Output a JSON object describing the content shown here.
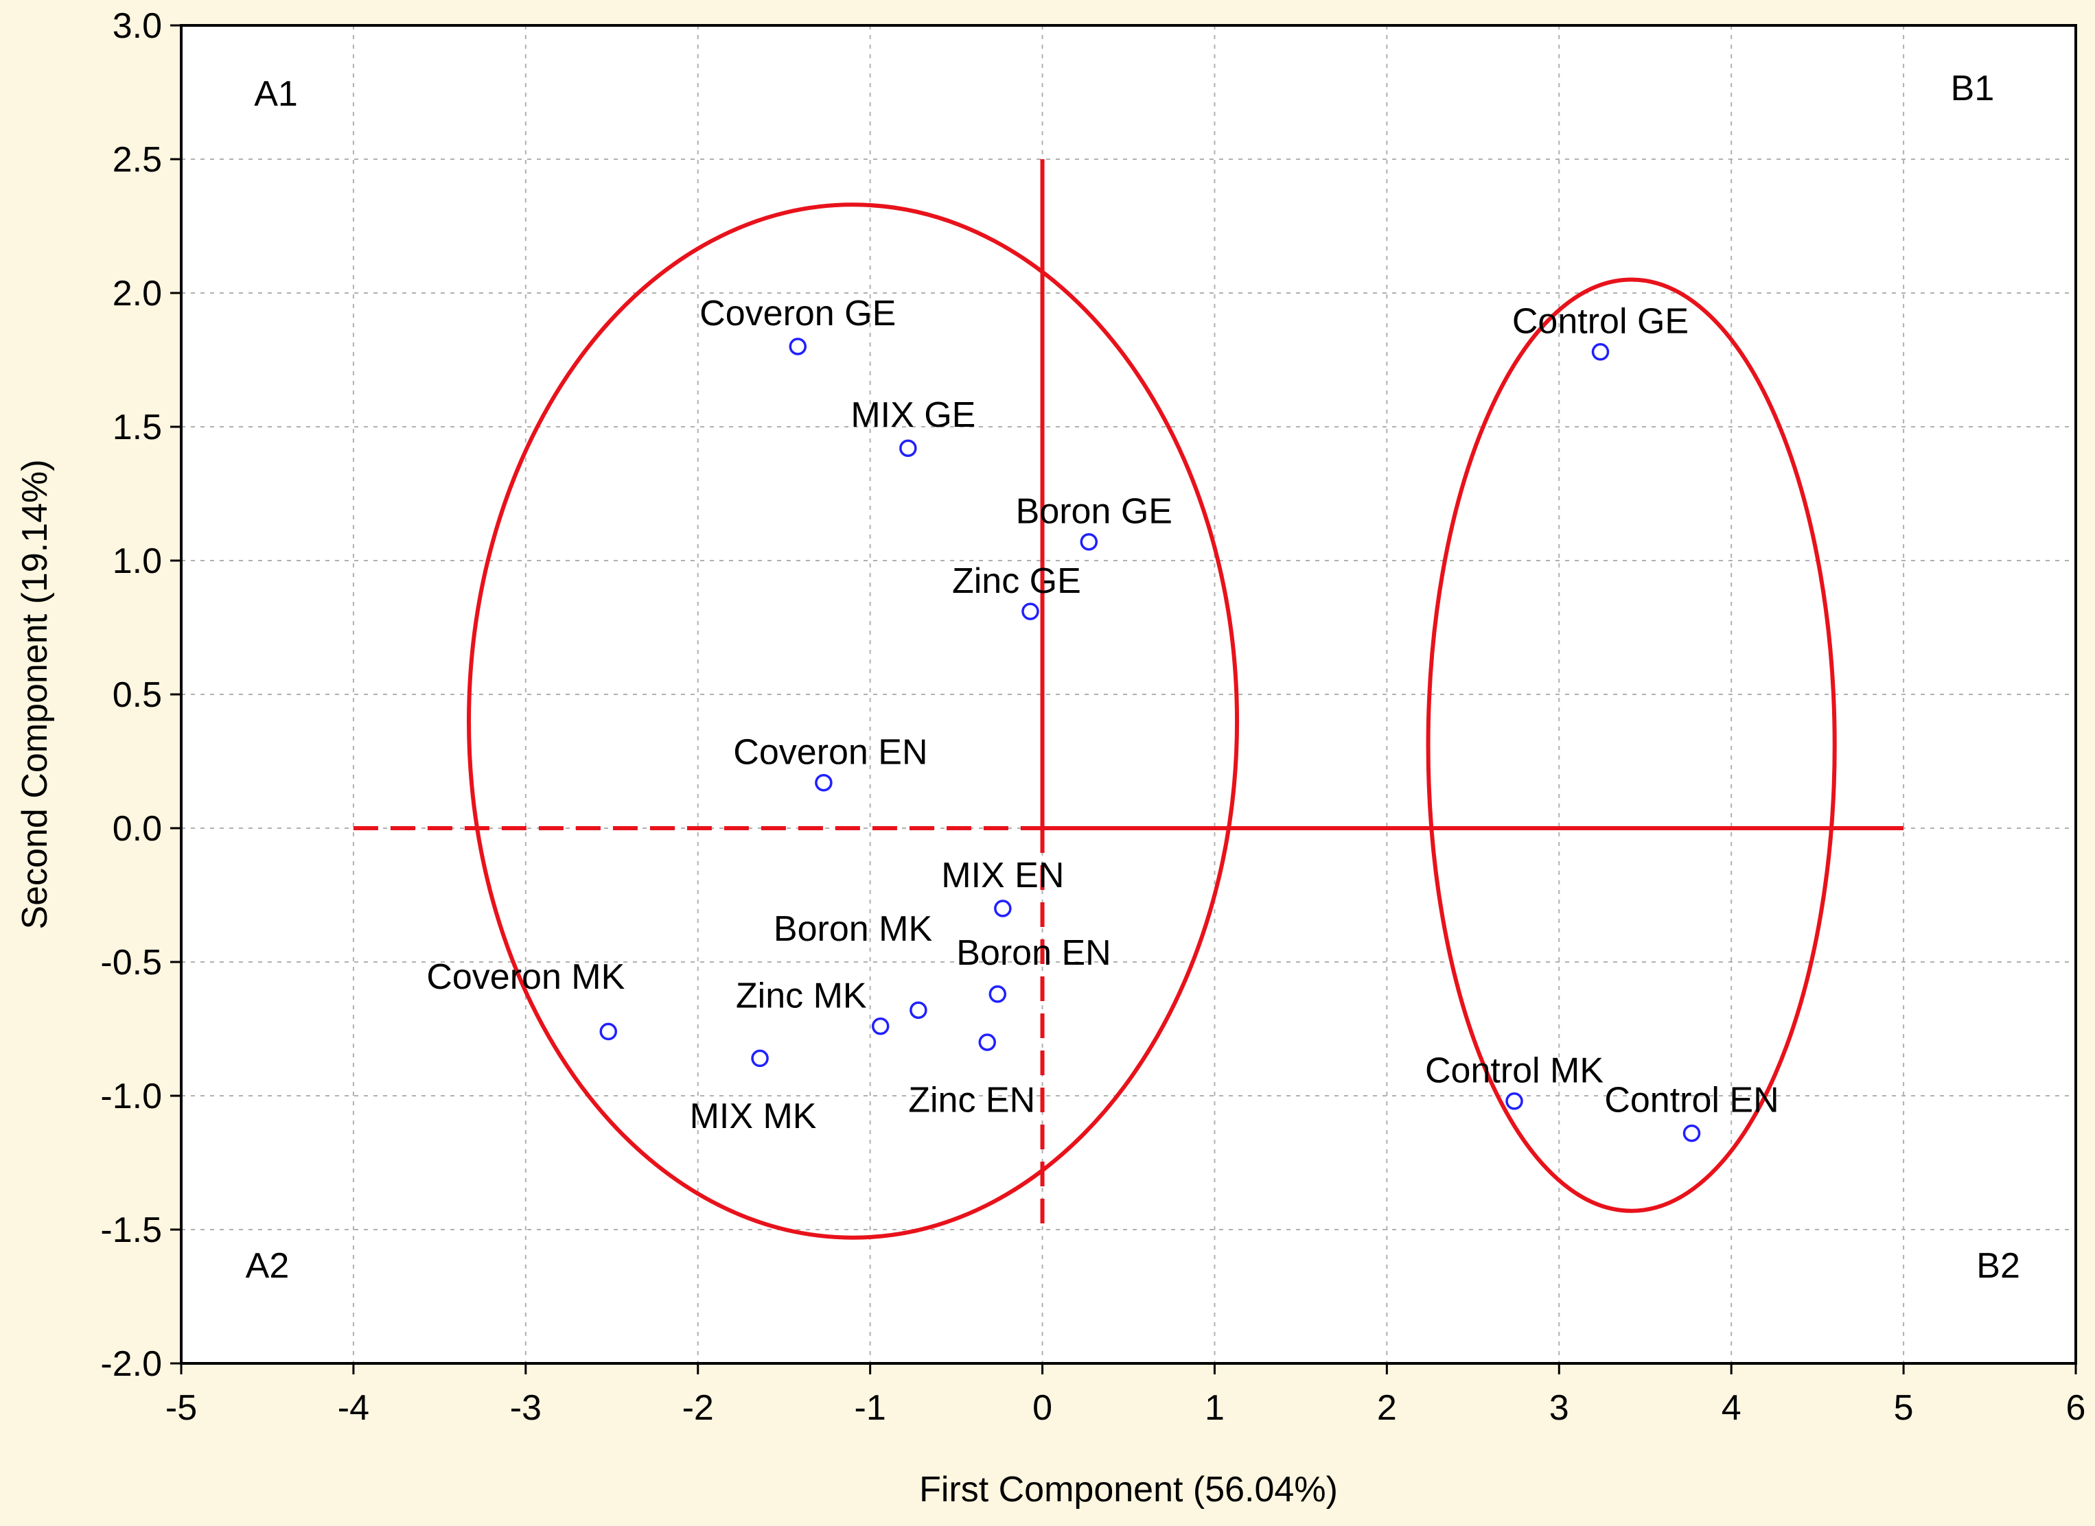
{
  "chart_data": {
    "type": "scatter",
    "title": "",
    "xlabel": "First Component (56.04%)",
    "ylabel": "Second Component (19.14%)",
    "xlim": [
      -5,
      6
    ],
    "ylim": [
      -2.0,
      3.0
    ],
    "x_ticks": [
      -5,
      -4,
      -3,
      -2,
      -1,
      0,
      1,
      2,
      3,
      4,
      5,
      6
    ],
    "x_tick_labels": [
      "-5",
      "-4",
      "-3",
      "-2",
      "-1",
      "0",
      "1",
      "2",
      "3",
      "4",
      "5",
      "6"
    ],
    "y_ticks": [
      -2.0,
      -1.5,
      -1.0,
      -0.5,
      0.0,
      0.5,
      1.0,
      1.5,
      2.0,
      2.5,
      3.0
    ],
    "y_tick_labels": [
      "-2.0",
      "-1.5",
      "-1.0",
      "-0.5",
      "0.0",
      "0.5",
      "1.0",
      "1.5",
      "2.0",
      "2.5",
      "3.0"
    ],
    "grid": true,
    "points": [
      {
        "label": "Coveron GE",
        "x": -1.42,
        "y": 1.8,
        "lx": -1.42,
        "ly": 1.88,
        "anchor": "middle"
      },
      {
        "label": "MIX GE",
        "x": -0.78,
        "y": 1.42,
        "lx": -0.75,
        "ly": 1.5,
        "anchor": "middle"
      },
      {
        "label": "Boron GE",
        "x": 0.27,
        "y": 1.07,
        "lx": 0.3,
        "ly": 1.14,
        "anchor": "middle"
      },
      {
        "label": "Zinc GE",
        "x": -0.07,
        "y": 0.81,
        "lx": -0.15,
        "ly": 0.88,
        "anchor": "middle"
      },
      {
        "label": "Coveron EN",
        "x": -1.27,
        "y": 0.17,
        "lx": -1.23,
        "ly": 0.24,
        "anchor": "middle"
      },
      {
        "label": "MIX EN",
        "x": -0.23,
        "y": -0.3,
        "lx": -0.23,
        "ly": -0.22,
        "anchor": "middle"
      },
      {
        "label": "Boron MK",
        "x": -0.72,
        "y": -0.68,
        "lx": -1.1,
        "ly": -0.42,
        "anchor": "middle"
      },
      {
        "label": "Boron EN",
        "x": -0.26,
        "y": -0.62,
        "lx": -0.05,
        "ly": -0.51,
        "anchor": "middle"
      },
      {
        "label": "Coveron MK",
        "x": -2.52,
        "y": -0.76,
        "lx": -3.0,
        "ly": -0.6,
        "anchor": "middle"
      },
      {
        "label": "Zinc MK",
        "x": -0.94,
        "y": -0.74,
        "lx": -1.4,
        "ly": -0.67,
        "anchor": "middle"
      },
      {
        "label": "Zinc EN",
        "x": -0.32,
        "y": -0.8,
        "lx": -0.41,
        "ly": -1.06,
        "anchor": "middle"
      },
      {
        "label": "MIX MK",
        "x": -1.64,
        "y": -0.86,
        "lx": -1.68,
        "ly": -1.12,
        "anchor": "middle"
      },
      {
        "label": "Control GE",
        "x": 3.24,
        "y": 1.78,
        "lx": 3.24,
        "ly": 1.85,
        "anchor": "middle"
      },
      {
        "label": "Control MK",
        "x": 2.74,
        "y": -1.02,
        "lx": 2.74,
        "ly": -0.95,
        "anchor": "middle"
      },
      {
        "label": "Control EN",
        "x": 3.77,
        "y": -1.14,
        "lx": 3.77,
        "ly": -1.06,
        "anchor": "middle"
      }
    ],
    "quadrant_labels": [
      {
        "text": "A1",
        "x": -4.45,
        "y": 2.7
      },
      {
        "text": "B1",
        "x": 5.4,
        "y": 2.72
      },
      {
        "text": "A2",
        "x": -4.5,
        "y": -1.68
      },
      {
        "text": "B2",
        "x": 5.55,
        "y": -1.68
      }
    ],
    "axes_lines": {
      "vertical": {
        "x": 0,
        "y_dashed_from": -1.5,
        "y_solid_to": 2.5
      },
      "horizontal": {
        "y": 0,
        "x_dashed_from": -4,
        "x_solid_to": 5
      }
    },
    "groups": [
      {
        "name": "A",
        "cx": -1.1,
        "cy": 0.4,
        "rx": 2.23,
        "ry": 1.93
      },
      {
        "name": "B",
        "cx": 3.42,
        "cy": 0.31,
        "rx": 1.18,
        "ry": 1.74
      }
    ],
    "colors": {
      "background": "#fdf6e0",
      "plot_background": "#ffffff",
      "grid": "#b0b0b0",
      "marker": "#2020ff",
      "annotation": "#e8121b",
      "frame": "#000000"
    }
  }
}
